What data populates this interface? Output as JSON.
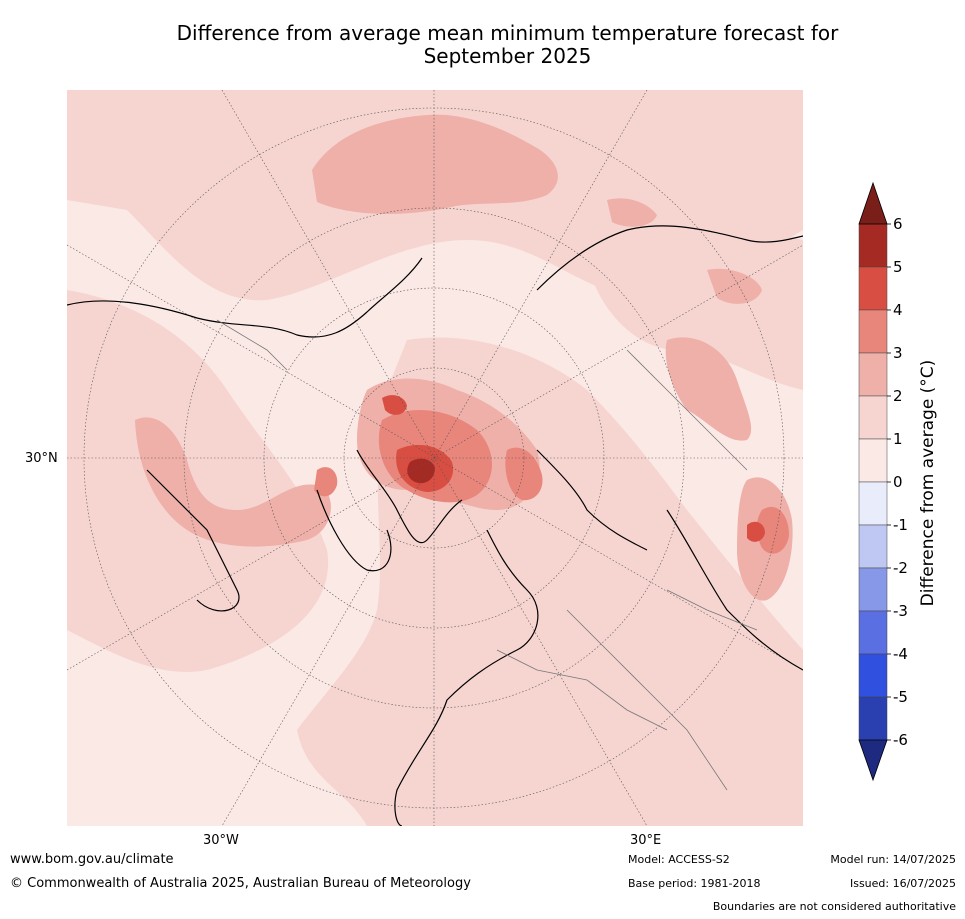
{
  "title_line1": "Difference from average mean minimum temperature forecast for",
  "title_line2": "September 2025",
  "map": {
    "projection": "north-polar-stereographic",
    "lat_label": "30°N",
    "lon_labels": [
      "30°W",
      "30°E"
    ]
  },
  "colorbar": {
    "label": "Difference from average (°C)",
    "ticks": [
      "6",
      "5",
      "4",
      "3",
      "2",
      "1",
      "0",
      "-1",
      "-2",
      "-3",
      "-4",
      "-5",
      "-6"
    ],
    "bins": [
      {
        "range": "5 to 6",
        "color": "#a52a23"
      },
      {
        "range": "4 to 5",
        "color": "#d94e43"
      },
      {
        "range": "3 to 4",
        "color": "#e9867c"
      },
      {
        "range": "2 to 3",
        "color": "#eeb0a9"
      },
      {
        "range": "1 to 2",
        "color": "#f6d5d1"
      },
      {
        "range": "0 to 1",
        "color": "#fbe9e6"
      },
      {
        "range": "-1 to 0",
        "color": "#e9edfb"
      },
      {
        "range": "-2 to -1",
        "color": "#bfc8f2"
      },
      {
        "range": "-3 to -2",
        "color": "#8898e8"
      },
      {
        "range": "-4 to -3",
        "color": "#5a6fe1"
      },
      {
        "range": "-5 to -4",
        "color": "#3050e0"
      },
      {
        "range": "-6 to -5",
        "color": "#2a3fb0"
      }
    ],
    "over_color": "#7a1e1a",
    "under_color": "#1e2a80"
  },
  "footer": {
    "url": "www.bom.gov.au/climate",
    "copyright": "© Commonwealth of Australia 2025, Australian Bureau of Meteorology",
    "model": "Model: ACCESS-S2",
    "base_period": "Base period: 1981-2018",
    "model_run": "Model run: 14/07/2025",
    "issued": "Issued: 16/07/2025",
    "disclaimer": "Boundaries are not considered authoritative"
  }
}
